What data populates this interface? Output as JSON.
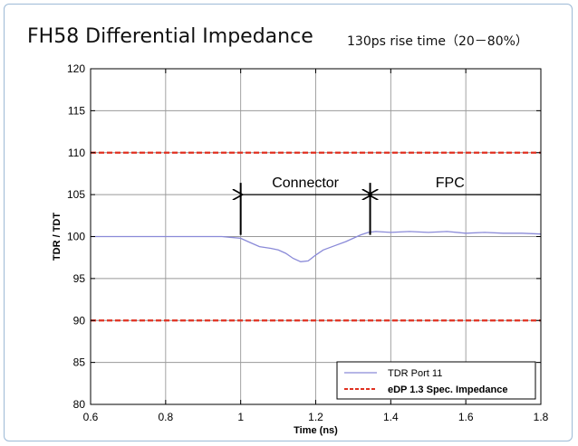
{
  "chart_data": {
    "type": "line",
    "title": "FH58 Differential Impedance",
    "subtitle": "130ps rise time（20－80%）",
    "xlabel": "Time (ns)",
    "ylabel": "TDR / TDT",
    "xlim": [
      0.6,
      1.8
    ],
    "ylim": [
      80,
      120
    ],
    "x_ticks": [
      "0.6",
      "0.8",
      "1",
      "1.2",
      "1.4",
      "1.6",
      "1.8"
    ],
    "y_ticks": [
      "80",
      "85",
      "90",
      "95",
      "100",
      "105",
      "110",
      "115",
      "120"
    ],
    "grid": true,
    "legend_position": "bottom-right",
    "series": [
      {
        "name": "TDR Port 11",
        "color": "#8a8ad8",
        "style": "solid",
        "x": [
          0.6,
          0.9,
          0.95,
          1.0,
          1.02,
          1.05,
          1.08,
          1.1,
          1.12,
          1.14,
          1.16,
          1.18,
          1.2,
          1.22,
          1.25,
          1.28,
          1.3,
          1.32,
          1.34,
          1.36,
          1.4,
          1.45,
          1.5,
          1.55,
          1.6,
          1.65,
          1.7,
          1.75,
          1.8
        ],
        "y": [
          100.0,
          100.0,
          100.0,
          99.8,
          99.4,
          98.8,
          98.6,
          98.4,
          98.0,
          97.4,
          97.0,
          97.1,
          97.8,
          98.4,
          98.9,
          99.4,
          99.8,
          100.2,
          100.5,
          100.6,
          100.5,
          100.6,
          100.5,
          100.6,
          100.4,
          100.5,
          100.4,
          100.4,
          100.3
        ]
      },
      {
        "name": "eDP 1.3 Spec. Impedance",
        "color": "#e03020",
        "style": "dashed",
        "hlines": [
          110,
          90
        ]
      }
    ],
    "annotations": [
      {
        "label": "Connector",
        "x_start": 1.0,
        "x_end": 1.345,
        "y": 105
      },
      {
        "label": "FPC",
        "x_start": 1.345,
        "x_end": 1.8,
        "y": 105
      }
    ]
  }
}
